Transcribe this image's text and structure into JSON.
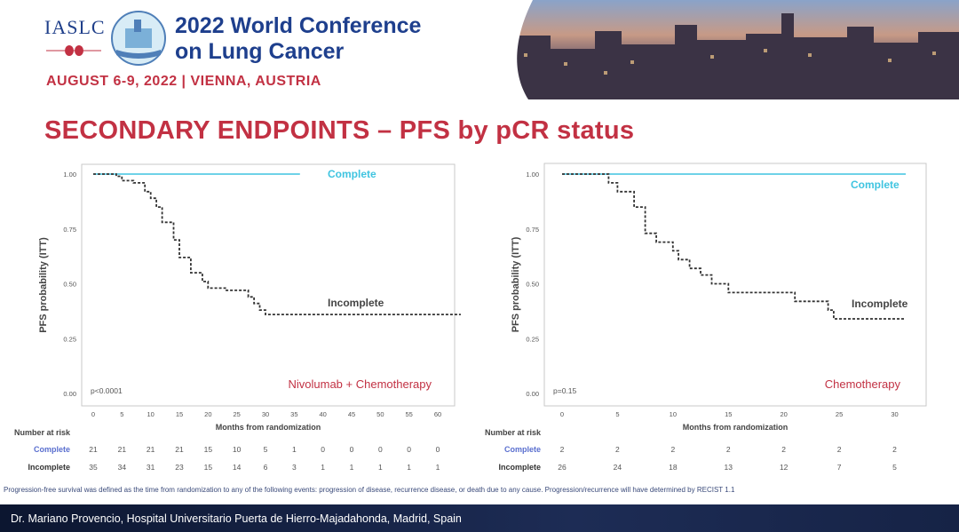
{
  "header": {
    "org": "IASLC",
    "conference_line1": "2022 World Conference",
    "conference_line2": "on Lung Cancer",
    "dates": "AUGUST 6-9, 2022 | VIENNA, AUSTRIA"
  },
  "slide_title": "SECONDARY ENDPOINTS – PFS by pCR status",
  "footnote": "Progression-free survival was defined as the time from randomization to any of the following events: progression of disease, recurrence disease, or death due to any cause. Progression/recurrence will have determined by RECIST 1.1",
  "footer": "Dr. Mariano Provencio, Hospital Universitario Puerta de Hierro-Majadahonda, Madrid, Spain",
  "colors": {
    "title_red": "#c23143",
    "navy": "#1e3f8d",
    "complete": "#3fc4e0",
    "incomplete": "#333333"
  },
  "risk_table_labels": {
    "header": "Number at risk",
    "rows": [
      "Complete",
      "Incomplete"
    ]
  },
  "chart_data": [
    {
      "type": "line",
      "arm": "Nivolumab + Chemotherapy",
      "xlabel": "Months from randomization",
      "ylabel": "PFS probability (ITT)",
      "xlim": [
        0,
        60
      ],
      "ylim": [
        0,
        1
      ],
      "xticks": [
        "0",
        "5",
        "10",
        "15",
        "20",
        "25",
        "30",
        "35",
        "40",
        "45",
        "50",
        "55",
        "60"
      ],
      "yticks": [
        "0.00",
        "0.25",
        "0.50",
        "0.75",
        "1.00"
      ],
      "pvalue": "p<0.0001",
      "series": [
        {
          "name": "Complete",
          "points": [
            [
              0,
              1.0
            ],
            [
              36,
              1.0
            ]
          ]
        },
        {
          "name": "Incomplete",
          "points": [
            [
              0,
              1.0
            ],
            [
              4,
              1.0
            ],
            [
              4,
              0.99
            ],
            [
              5,
              0.99
            ],
            [
              5,
              0.97
            ],
            [
              7,
              0.97
            ],
            [
              7,
              0.96
            ],
            [
              9,
              0.96
            ],
            [
              9,
              0.92
            ],
            [
              10,
              0.92
            ],
            [
              10,
              0.89
            ],
            [
              11,
              0.89
            ],
            [
              11,
              0.85
            ],
            [
              12,
              0.85
            ],
            [
              12,
              0.78
            ],
            [
              14,
              0.78
            ],
            [
              14,
              0.7
            ],
            [
              15,
              0.7
            ],
            [
              15,
              0.62
            ],
            [
              17,
              0.62
            ],
            [
              17,
              0.55
            ],
            [
              19,
              0.55
            ],
            [
              19,
              0.51
            ],
            [
              20,
              0.51
            ],
            [
              20,
              0.48
            ],
            [
              23,
              0.48
            ],
            [
              23,
              0.47
            ],
            [
              27,
              0.47
            ],
            [
              27,
              0.44
            ],
            [
              28,
              0.44
            ],
            [
              28,
              0.41
            ],
            [
              29,
              0.41
            ],
            [
              29,
              0.38
            ],
            [
              30,
              0.38
            ],
            [
              30,
              0.36
            ],
            [
              64,
              0.36
            ]
          ]
        }
      ],
      "annotations": [
        "Complete",
        "Incomplete"
      ],
      "risk_times": [
        "0",
        "5",
        "10",
        "15",
        "20",
        "25",
        "30",
        "35",
        "40",
        "45",
        "50",
        "55",
        "60"
      ],
      "risk_complete": [
        "21",
        "21",
        "21",
        "21",
        "15",
        "10",
        "5",
        "1",
        "0",
        "0",
        "0",
        "0",
        "0"
      ],
      "risk_incomplete": [
        "35",
        "34",
        "31",
        "23",
        "15",
        "14",
        "6",
        "3",
        "1",
        "1",
        "1",
        "1",
        "1"
      ]
    },
    {
      "type": "line",
      "arm": "Chemotherapy",
      "xlabel": "Months from randomization",
      "ylabel": "PFS probability (ITT)",
      "xlim": [
        0,
        31
      ],
      "ylim": [
        0,
        1
      ],
      "xticks": [
        "0",
        "5",
        "10",
        "15",
        "20",
        "25",
        "30"
      ],
      "yticks": [
        "0.00",
        "0.25",
        "0.50",
        "0.75",
        "1.00"
      ],
      "pvalue": "p=0.15",
      "series": [
        {
          "name": "Complete",
          "points": [
            [
              0,
              1.0
            ],
            [
              31,
              1.0
            ]
          ]
        },
        {
          "name": "Incomplete",
          "points": [
            [
              0,
              1.0
            ],
            [
              4.2,
              1.0
            ],
            [
              4.2,
              0.96
            ],
            [
              5,
              0.96
            ],
            [
              5,
              0.92
            ],
            [
              6.5,
              0.92
            ],
            [
              6.5,
              0.85
            ],
            [
              7.5,
              0.85
            ],
            [
              7.5,
              0.73
            ],
            [
              8.5,
              0.73
            ],
            [
              8.5,
              0.69
            ],
            [
              10,
              0.69
            ],
            [
              10,
              0.65
            ],
            [
              10.5,
              0.65
            ],
            [
              10.5,
              0.61
            ],
            [
              11.5,
              0.61
            ],
            [
              11.5,
              0.57
            ],
            [
              12.5,
              0.57
            ],
            [
              12.5,
              0.54
            ],
            [
              13.5,
              0.54
            ],
            [
              13.5,
              0.5
            ],
            [
              15,
              0.5
            ],
            [
              15,
              0.46
            ],
            [
              21,
              0.46
            ],
            [
              21,
              0.42
            ],
            [
              24,
              0.42
            ],
            [
              24,
              0.38
            ],
            [
              24.5,
              0.38
            ],
            [
              24.5,
              0.34
            ],
            [
              31,
              0.34
            ]
          ]
        }
      ],
      "annotations": [
        "Complete",
        "Incomplete"
      ],
      "risk_times": [
        "0",
        "5",
        "10",
        "15",
        "20",
        "25",
        "30"
      ],
      "risk_complete": [
        "2",
        "2",
        "2",
        "2",
        "2",
        "2",
        "2"
      ],
      "risk_incomplete": [
        "26",
        "24",
        "18",
        "13",
        "12",
        "7",
        "5"
      ]
    }
  ]
}
